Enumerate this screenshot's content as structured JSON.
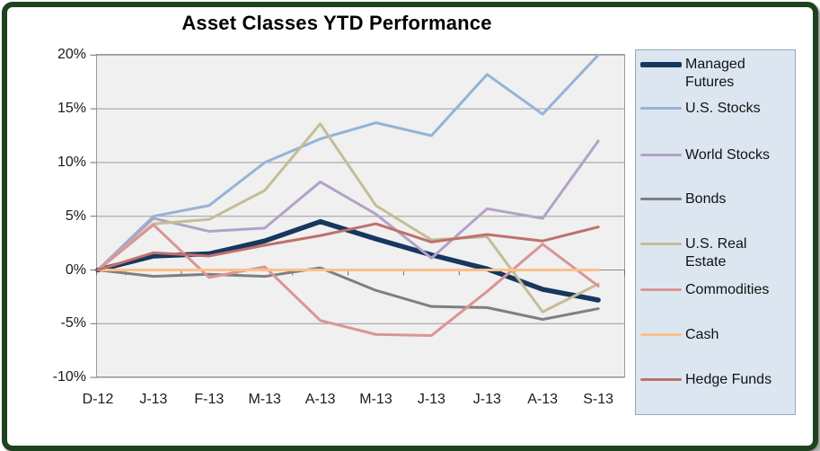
{
  "chart": {
    "title": "Asset Classes YTD Performance"
  },
  "chart_data": {
    "type": "line",
    "title": "Asset Classes YTD Performance",
    "categories": [
      "D-12",
      "J-13",
      "F-13",
      "M-13",
      "A-13",
      "M-13",
      "J-13",
      "J-13",
      "A-13",
      "S-13"
    ],
    "series": [
      {
        "name": "Managed Futures",
        "color": "#17375e",
        "line_width": 5.5,
        "values": [
          0,
          1.3,
          1.5,
          2.7,
          4.5,
          2.9,
          1.4,
          0.1,
          -1.8,
          -2.8
        ]
      },
      {
        "name": "U.S. Stocks",
        "color": "#95b3d7",
        "line_width": 3,
        "values": [
          0,
          5.0,
          6.0,
          10.0,
          12.2,
          13.7,
          12.5,
          18.2,
          14.5,
          20.0
        ]
      },
      {
        "name": "World Stocks",
        "color": "#b3a2c7",
        "line_width": 3,
        "values": [
          0,
          4.8,
          3.6,
          3.9,
          8.2,
          5.2,
          1.1,
          5.7,
          4.8,
          12.0
        ]
      },
      {
        "name": "Bonds",
        "color": "#7f7f7f",
        "line_width": 3,
        "values": [
          0,
          -0.6,
          -0.4,
          -0.6,
          0.2,
          -1.9,
          -3.4,
          -3.5,
          -4.6,
          -3.6
        ]
      },
      {
        "name": "U.S. Real Estate",
        "color": "#c4bd97",
        "line_width": 3,
        "values": [
          0,
          4.3,
          4.7,
          7.4,
          13.6,
          6.0,
          2.8,
          3.1,
          -3.9,
          -1.3
        ]
      },
      {
        "name": "Commodities",
        "color": "#d99694",
        "line_width": 3,
        "values": [
          0,
          4.2,
          -0.7,
          0.3,
          -4.7,
          -6.0,
          -6.1,
          -2.0,
          2.4,
          -1.5
        ]
      },
      {
        "name": "Cash",
        "color": "#fbc08c",
        "line_width": 3,
        "values": [
          0,
          0,
          0,
          0,
          0,
          0,
          0,
          0,
          0,
          0
        ]
      },
      {
        "name": "Hedge Funds",
        "color": "#c0706b",
        "line_width": 3,
        "values": [
          0,
          1.6,
          1.3,
          2.3,
          3.2,
          4.3,
          2.6,
          3.3,
          2.7,
          4.0
        ]
      }
    ],
    "xlabel": "",
    "ylabel": "",
    "ylim": [
      -10,
      20
    ],
    "ytick_step": 5,
    "ytick_labels": [
      "20%",
      "15%",
      "10%",
      "5%",
      "0%",
      "-5%",
      "-10%"
    ],
    "grid": true,
    "legend_position": "right",
    "plot_bg": "#f0f0f0",
    "grid_color": "#9b9b9b",
    "legend_bg": "#dce6f1",
    "frame_color": "#1d421e"
  }
}
